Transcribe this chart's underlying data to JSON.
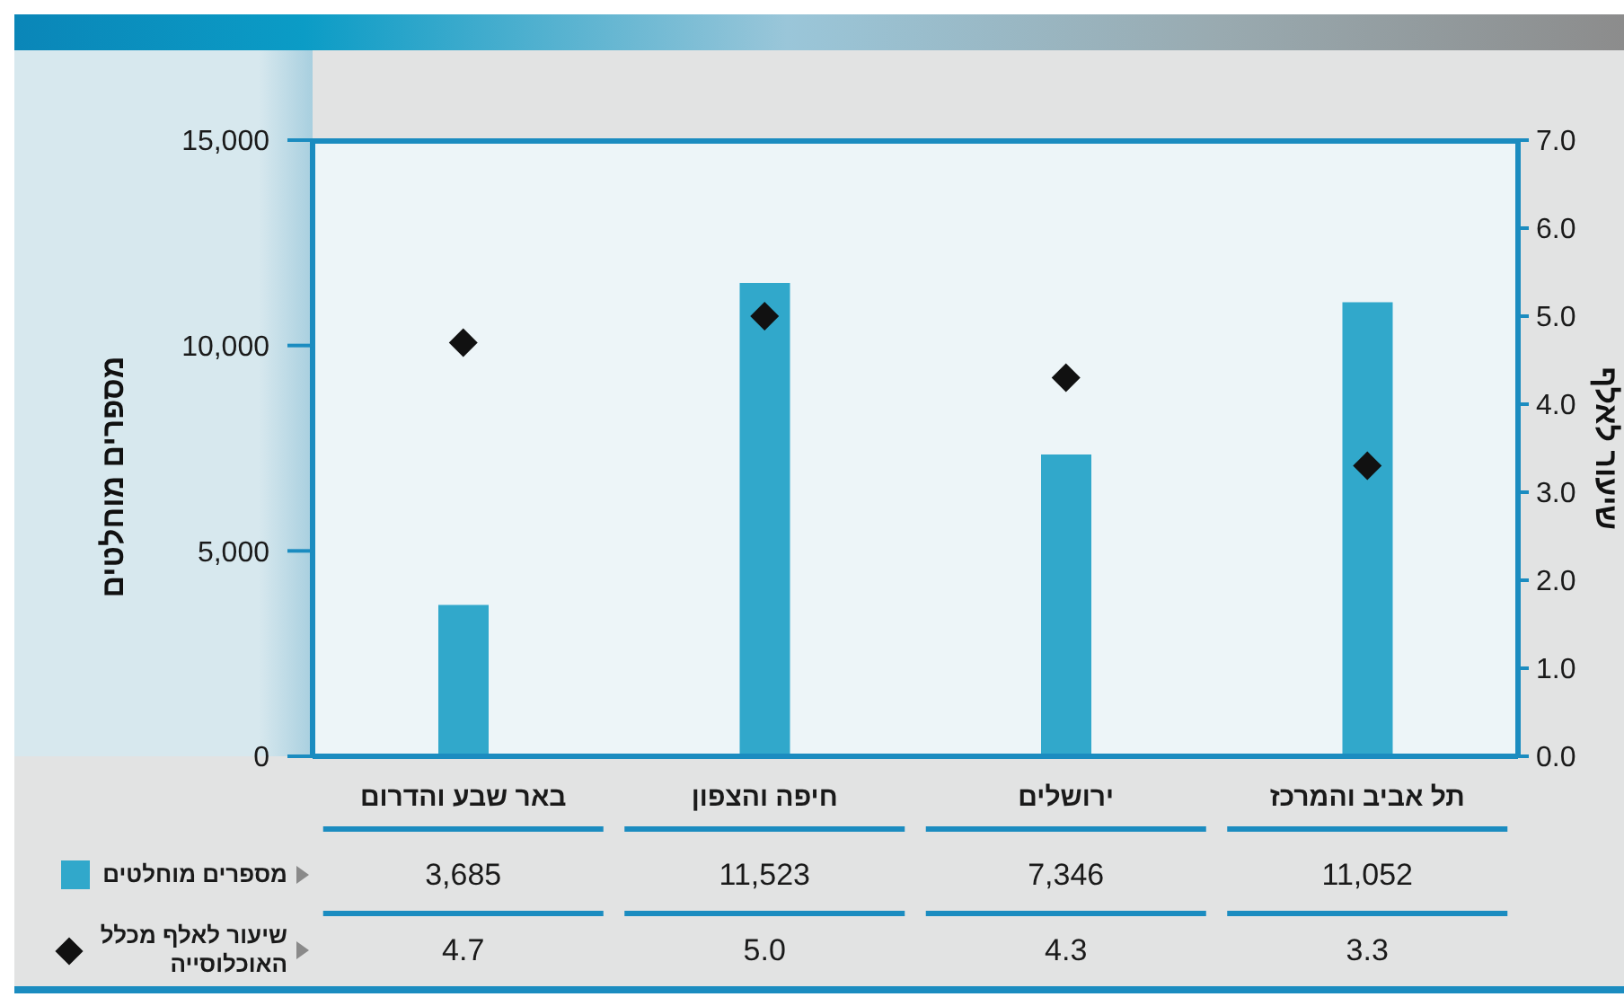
{
  "chart_data": {
    "type": "bar",
    "categories": [
      "באר שבע והדרום",
      "חיפה והצפון",
      "ירושלים",
      "תל אביב והמרכז"
    ],
    "ylabel": "מספרים מוחלטים",
    "y2label": "שיעור לאלף",
    "series": [
      {
        "name": "מספרים מוחלטים",
        "color": "#31a8cb",
        "values": [
          3685,
          11523,
          7346,
          11052
        ],
        "value_labels": [
          "3,685",
          "11,523",
          "7,346",
          "11,052"
        ]
      },
      {
        "name": "שיעור לאלף מכלל האוכלוסייה",
        "type": "scatter",
        "axis": "y2",
        "marker": "diamond",
        "color": "#111111",
        "x": [
          "באר שבע והדרום",
          "חיפה והצפון",
          "ירושלים",
          "תל אביב והמרכז"
        ],
        "values": [
          4.7,
          5.0,
          4.3,
          3.3
        ],
        "value_labels": [
          "4.7",
          "5.0",
          "4.3",
          "3.3"
        ]
      }
    ],
    "ylim": [
      0,
      15000
    ],
    "yticks": [
      0,
      {
        "value": 5000,
        "label": "5,000"
      },
      {
        "value": 10000,
        "label": "10,000"
      },
      {
        "value": 15000,
        "label": "15,000"
      }
    ],
    "y2lim": [
      0,
      7
    ],
    "y2ticks": [
      {
        "value": 0,
        "label": "0.0"
      },
      {
        "value": 1,
        "label": "1.0"
      },
      {
        "value": 2,
        "label": "2.0"
      },
      {
        "value": 3,
        "label": "3.0"
      },
      {
        "value": 4,
        "label": "4.0"
      },
      {
        "value": 5,
        "label": "5.0"
      },
      {
        "value": 6,
        "label": "6.0"
      },
      {
        "value": 7,
        "label": "7.0"
      }
    ],
    "legend": "bottom left"
  }
}
